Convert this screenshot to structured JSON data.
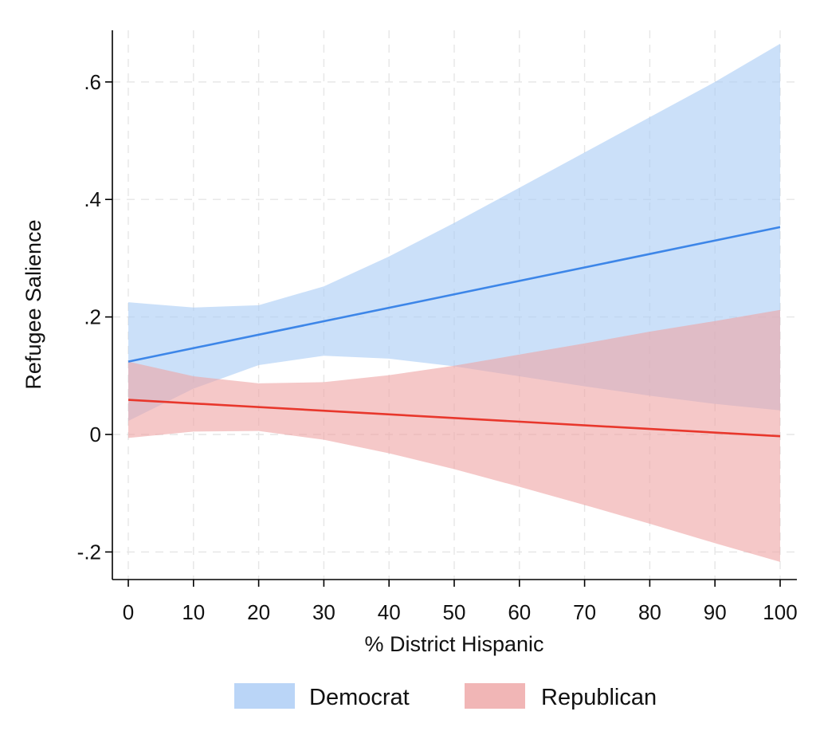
{
  "chart_data": {
    "type": "line",
    "xlabel": "% District Hispanic",
    "ylabel": "Refugee Salience",
    "xlim": [
      0,
      100
    ],
    "ylim": [
      -0.25,
      0.69
    ],
    "grid": true,
    "legend_position": "bottom",
    "x_ticks": [
      0,
      10,
      20,
      30,
      40,
      50,
      60,
      70,
      80,
      90,
      100
    ],
    "x_tick_labels": [
      "0",
      "10",
      "20",
      "30",
      "40",
      "50",
      "60",
      "70",
      "80",
      "90",
      "100"
    ],
    "y_ticks": [
      -0.2,
      0,
      0.2,
      0.4,
      0.6
    ],
    "y_tick_labels": [
      "-.2",
      "0",
      ".2",
      ".4",
      ".6"
    ],
    "series": [
      {
        "name": "Democrat",
        "line_color": "#3d86e8",
        "band_color": "#a9cbf5",
        "x": [
          0,
          100
        ],
        "y": [
          0.124,
          0.353
        ],
        "ci_x": [
          0,
          10,
          20,
          30,
          40,
          50,
          60,
          70,
          80,
          90,
          100
        ],
        "ci_upper": [
          0.225,
          0.216,
          0.22,
          0.252,
          0.303,
          0.36,
          0.42,
          0.48,
          0.54,
          0.6,
          0.665
        ],
        "ci_lower": [
          0.023,
          0.078,
          0.118,
          0.134,
          0.129,
          0.116,
          0.099,
          0.082,
          0.066,
          0.052,
          0.041
        ]
      },
      {
        "name": "Republican",
        "line_color": "#e8372c",
        "band_color": "#eea4a4",
        "x": [
          0,
          100
        ],
        "y": [
          0.059,
          -0.003
        ],
        "ci_x": [
          0,
          10,
          20,
          30,
          40,
          50,
          60,
          70,
          80,
          90,
          100
        ],
        "ci_upper": [
          0.124,
          0.099,
          0.087,
          0.089,
          0.101,
          0.117,
          0.136,
          0.155,
          0.175,
          0.193,
          0.212
        ],
        "ci_lower": [
          -0.006,
          0.005,
          0.006,
          -0.009,
          -0.032,
          -0.059,
          -0.089,
          -0.12,
          -0.152,
          -0.185,
          -0.217
        ]
      }
    ]
  }
}
